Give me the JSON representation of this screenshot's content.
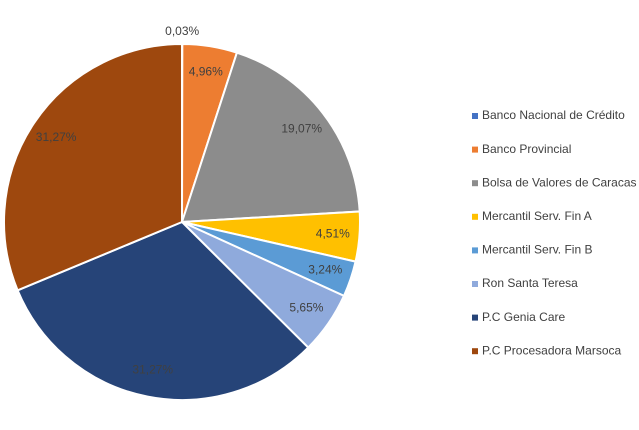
{
  "chart_data": {
    "type": "pie",
    "categories": [
      "Banco Nacional de Crédito",
      "Banco Provincial",
      "Bolsa de Valores de Caracas",
      "Mercantil Serv. Fin A",
      "Mercantil Serv. Fin B",
      "Ron Santa Teresa",
      "P.C Genia Care",
      "P.C Procesadora Marsoca"
    ],
    "values": [
      0.03,
      4.96,
      19.07,
      4.51,
      3.24,
      5.65,
      31.27,
      31.27
    ],
    "value_labels": [
      "0,03%",
      "4,96%",
      "19,07%",
      "4,51%",
      "3,24%",
      "5,65%",
      "31,27%",
      "31,27%"
    ],
    "colors": [
      "#4472c4",
      "#ed7d31",
      "#8c8c8c",
      "#ffc000",
      "#5b9bd5",
      "#8faadc",
      "#264478",
      "#9e480e"
    ],
    "legend": "right"
  }
}
